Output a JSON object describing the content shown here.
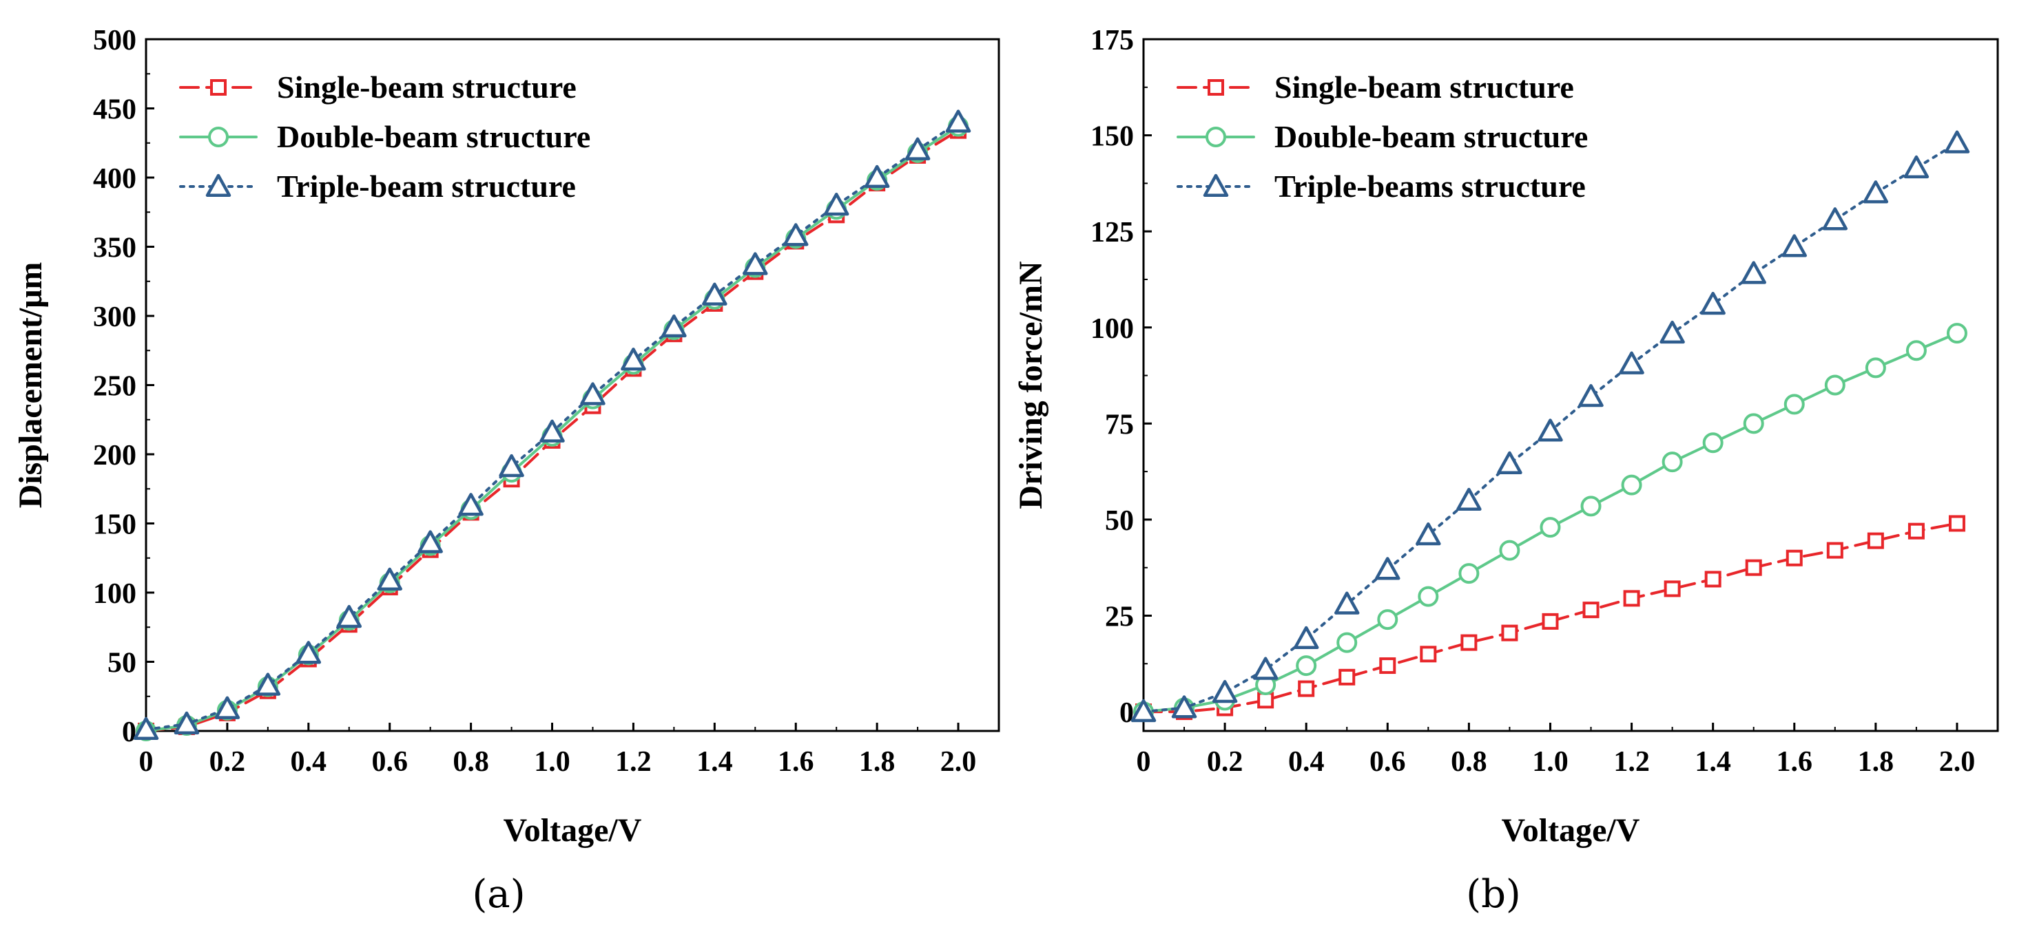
{
  "chart_data": [
    {
      "type": "line",
      "caption": "(a)",
      "title": "",
      "xlabel": "Voltage/V",
      "ylabel": "Displacement/μm",
      "xlim": [
        0,
        2.1
      ],
      "ylim": [
        0,
        500
      ],
      "x_ticks": [
        0,
        0.2,
        0.4,
        0.6,
        0.8,
        1.0,
        1.2,
        1.4,
        1.6,
        1.8,
        2.0
      ],
      "x_tick_labels": [
        "0",
        "0.2",
        "0.4",
        "0.6",
        "0.8",
        "1.0",
        "1.2",
        "1.4",
        "1.6",
        "1.8",
        "2.0"
      ],
      "y_ticks": [
        0,
        50,
        100,
        150,
        200,
        250,
        300,
        350,
        400,
        450,
        500
      ],
      "y_tick_labels": [
        "0",
        "50",
        "100",
        "150",
        "200",
        "250",
        "300",
        "350",
        "400",
        "450",
        "500"
      ],
      "grid": false,
      "legend_position": "top-left",
      "x": [
        0,
        0.1,
        0.2,
        0.3,
        0.4,
        0.5,
        0.6,
        0.7,
        0.8,
        0.9,
        1.0,
        1.1,
        1.2,
        1.3,
        1.4,
        1.5,
        1.6,
        1.7,
        1.8,
        1.9,
        2.0
      ],
      "series": [
        {
          "name": "Single-beam structure",
          "color": "#e8262a",
          "marker": "square",
          "line": "dashed",
          "values": [
            0,
            3,
            13,
            29,
            52,
            77,
            104,
            131,
            158,
            182,
            210,
            235,
            262,
            287,
            309,
            332,
            354,
            373,
            396,
            416,
            434
          ]
        },
        {
          "name": "Double-beam structure",
          "color": "#5ec98a",
          "marker": "circle",
          "line": "solid",
          "values": [
            0,
            4,
            15,
            32,
            55,
            80,
            107,
            134,
            160,
            187,
            213,
            240,
            265,
            290,
            312,
            335,
            356,
            377,
            398,
            418,
            437
          ]
        },
        {
          "name": "Triple-beam structure",
          "color": "#2f5d8e",
          "marker": "triangle",
          "line": "dotted",
          "values": [
            1,
            5,
            16,
            33,
            56,
            82,
            109,
            136,
            163,
            191,
            216,
            243,
            268,
            292,
            315,
            337,
            358,
            380,
            400,
            420,
            440
          ]
        }
      ]
    },
    {
      "type": "line",
      "caption": "(b)",
      "title": "",
      "xlabel": "Voltage/V",
      "ylabel": "Driving force/mN",
      "xlim": [
        0,
        2.1
      ],
      "ylim": [
        -5,
        175
      ],
      "x_ticks": [
        0,
        0.2,
        0.4,
        0.6,
        0.8,
        1.0,
        1.2,
        1.4,
        1.6,
        1.8,
        2.0
      ],
      "x_tick_labels": [
        "0",
        "0.2",
        "0.4",
        "0.6",
        "0.8",
        "1.0",
        "1.2",
        "1.4",
        "1.6",
        "1.8",
        "2.0"
      ],
      "y_ticks": [
        0,
        25,
        50,
        75,
        100,
        125,
        150,
        175
      ],
      "y_tick_labels": [
        "0",
        "25",
        "50",
        "75",
        "100",
        "125",
        "150",
        "175"
      ],
      "grid": false,
      "legend_position": "top-left",
      "x": [
        0,
        0.1,
        0.2,
        0.3,
        0.4,
        0.5,
        0.6,
        0.7,
        0.8,
        0.9,
        1.0,
        1.1,
        1.2,
        1.3,
        1.4,
        1.5,
        1.6,
        1.7,
        1.8,
        1.9,
        2.0
      ],
      "series": [
        {
          "name": "Single-beam structure",
          "color": "#e8262a",
          "marker": "square",
          "line": "dashed",
          "values": [
            0,
            0,
            1,
            3,
            6,
            9,
            12,
            15,
            18,
            20.5,
            23.5,
            26.5,
            29.5,
            32,
            34.5,
            37.5,
            40,
            42,
            44.5,
            47,
            49
          ]
        },
        {
          "name": "Double-beam structure",
          "color": "#5ec98a",
          "marker": "circle",
          "line": "solid",
          "values": [
            0,
            1,
            3,
            7,
            12,
            18,
            24,
            30,
            36,
            42,
            48,
            53.5,
            59,
            65,
            70,
            75,
            80,
            85,
            89.5,
            94,
            98.5
          ]
        },
        {
          "name": "Triple-beams structure",
          "color": "#2f5d8e",
          "marker": "triangle",
          "line": "dotted",
          "values": [
            0,
            1,
            5,
            11,
            19,
            28,
            37,
            46,
            55,
            64.5,
            73,
            82,
            90.5,
            98.5,
            106,
            114,
            121,
            128,
            135,
            141.5,
            148
          ]
        }
      ]
    }
  ]
}
